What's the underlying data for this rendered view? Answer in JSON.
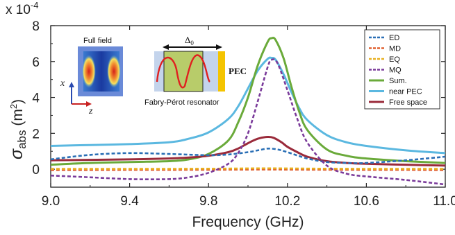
{
  "chart_data": {
    "type": "line",
    "xlabel": "Frequency (GHz)",
    "ylabel": "σabs (m²)",
    "ylabel_main": "σ",
    "ylabel_sub": "abs",
    "ylabel_unit_open": " (m",
    "ylabel_unit_exp": "2",
    "ylabel_unit_close": ")",
    "y_multiplier_base": "x 10",
    "y_multiplier_exp": "-4",
    "xlim": [
      9.0,
      11.0
    ],
    "ylim": [
      -1.0,
      8.0
    ],
    "x_ticks": [
      "9.0",
      "9.4",
      "9.8",
      "10.2",
      "10.6",
      "11.0"
    ],
    "y_ticks": [
      "0",
      "2",
      "4",
      "6",
      "8"
    ],
    "legend_position": "top-right",
    "series": [
      {
        "name": "ED",
        "color": "#2a6fb5",
        "dash": "5,3",
        "x": [
          9.0,
          9.2,
          9.4,
          9.6,
          9.8,
          9.9,
          10.0,
          10.05,
          10.1,
          10.15,
          10.2,
          10.3,
          10.4,
          10.5,
          10.6,
          10.8,
          11.0
        ],
        "y": [
          0.55,
          0.8,
          0.9,
          0.85,
          0.78,
          0.82,
          0.95,
          1.05,
          1.15,
          1.1,
          0.95,
          0.6,
          0.4,
          0.35,
          0.35,
          0.5,
          0.7
        ]
      },
      {
        "name": "MD",
        "color": "#e06030",
        "dash": "5,3",
        "x": [
          9.0,
          9.4,
          9.8,
          10.1,
          10.4,
          10.8,
          11.0
        ],
        "y": [
          -0.05,
          -0.04,
          -0.03,
          -0.02,
          -0.03,
          -0.04,
          -0.05
        ]
      },
      {
        "name": "EQ",
        "color": "#e8b020",
        "dash": "5,3",
        "x": [
          9.0,
          9.4,
          9.8,
          10.1,
          10.4,
          10.8,
          11.0
        ],
        "y": [
          0.02,
          0.02,
          0.03,
          0.05,
          0.03,
          0.02,
          0.02
        ]
      },
      {
        "name": "MQ",
        "color": "#7a3a9a",
        "dash": "5,3",
        "x": [
          9.0,
          9.2,
          9.4,
          9.6,
          9.7,
          9.8,
          9.9,
          9.95,
          10.0,
          10.05,
          10.1,
          10.12,
          10.15,
          10.2,
          10.25,
          10.3,
          10.4,
          10.5,
          10.6,
          10.8,
          11.0
        ],
        "y": [
          -0.35,
          -0.45,
          -0.55,
          -0.55,
          -0.45,
          -0.2,
          0.3,
          0.9,
          2.0,
          3.8,
          5.7,
          6.1,
          5.9,
          4.4,
          2.8,
          1.5,
          0.2,
          -0.25,
          -0.4,
          -0.6,
          -0.85
        ]
      },
      {
        "name": "Sum.",
        "color": "#6aaa3a",
        "dash": "",
        "x": [
          9.0,
          9.2,
          9.4,
          9.6,
          9.7,
          9.8,
          9.9,
          9.95,
          10.0,
          10.05,
          10.1,
          10.12,
          10.14,
          10.18,
          10.22,
          10.26,
          10.3,
          10.4,
          10.5,
          10.6,
          10.8,
          11.0
        ],
        "y": [
          0.25,
          0.35,
          0.4,
          0.45,
          0.55,
          0.85,
          1.6,
          2.6,
          4.0,
          5.8,
          7.1,
          7.3,
          7.2,
          6.2,
          4.6,
          3.2,
          2.2,
          1.1,
          0.75,
          0.6,
          0.45,
          0.35
        ]
      },
      {
        "name": "near PEC",
        "color": "#5bb8e0",
        "dash": "",
        "x": [
          9.0,
          9.2,
          9.4,
          9.6,
          9.7,
          9.8,
          9.9,
          9.95,
          10.0,
          10.05,
          10.1,
          10.12,
          10.14,
          10.18,
          10.22,
          10.26,
          10.3,
          10.4,
          10.5,
          10.6,
          10.8,
          11.0
        ],
        "y": [
          1.3,
          1.35,
          1.4,
          1.5,
          1.7,
          2.05,
          2.8,
          3.5,
          4.5,
          5.5,
          6.15,
          6.2,
          6.1,
          5.3,
          4.3,
          3.4,
          2.75,
          1.9,
          1.5,
          1.3,
          1.05,
          0.9
        ]
      },
      {
        "name": "Free space",
        "color": "#9a2a3a",
        "dash": "",
        "x": [
          9.0,
          9.2,
          9.4,
          9.6,
          9.7,
          9.8,
          9.9,
          9.95,
          10.0,
          10.05,
          10.1,
          10.13,
          10.17,
          10.2,
          10.25,
          10.3,
          10.4,
          10.5,
          10.6,
          10.8,
          11.0
        ],
        "y": [
          0.5,
          0.52,
          0.55,
          0.6,
          0.65,
          0.75,
          0.95,
          1.15,
          1.45,
          1.7,
          1.8,
          1.75,
          1.5,
          1.25,
          0.95,
          0.7,
          0.45,
          0.35,
          0.3,
          0.25,
          0.2
        ]
      }
    ],
    "inset": {
      "full_field_label": "Full field",
      "axis_x_label": "x",
      "axis_z_label": "z",
      "delta_label_main": "Δ",
      "delta_label_sub": "0",
      "pec_label": "PEC",
      "resonator_label": "Fabry-Pérot resonator"
    }
  }
}
